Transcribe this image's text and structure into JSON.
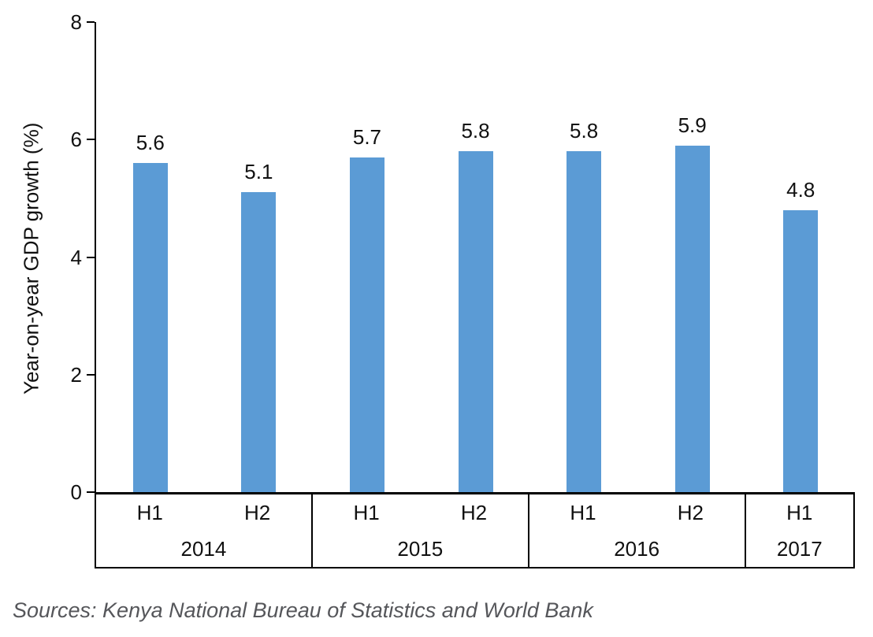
{
  "chart_data": {
    "type": "bar",
    "title": "",
    "ylabel": "Year-on-year GDP growth (%)",
    "xlabel": "",
    "ylim": [
      0,
      8
    ],
    "yticks": [
      0,
      2,
      4,
      6,
      8
    ],
    "grid": false,
    "legend": false,
    "bar_color": "#5B9BD5",
    "categories": [
      "2014 H1",
      "2014 H2",
      "2015 H1",
      "2015 H2",
      "2016 H1",
      "2016 H2",
      "2017 H1"
    ],
    "values": [
      5.6,
      5.1,
      5.7,
      5.8,
      5.8,
      5.9,
      4.8
    ],
    "value_labels": [
      "5.6",
      "5.1",
      "5.7",
      "5.8",
      "5.8",
      "5.9",
      "4.8"
    ],
    "groups": [
      {
        "label": "2014",
        "bars": [
          {
            "label": "H1",
            "value": 5.6
          },
          {
            "label": "H2",
            "value": 5.1
          }
        ]
      },
      {
        "label": "2015",
        "bars": [
          {
            "label": "H1",
            "value": 5.7
          },
          {
            "label": "H2",
            "value": 5.8
          }
        ]
      },
      {
        "label": "2016",
        "bars": [
          {
            "label": "H1",
            "value": 5.8
          },
          {
            "label": "H2",
            "value": 5.9
          }
        ]
      },
      {
        "label": "2017",
        "bars": [
          {
            "label": "H1",
            "value": 4.8
          }
        ]
      }
    ]
  },
  "source": {
    "text": "Sources: Kenya National Bureau of Statistics and World Bank"
  }
}
